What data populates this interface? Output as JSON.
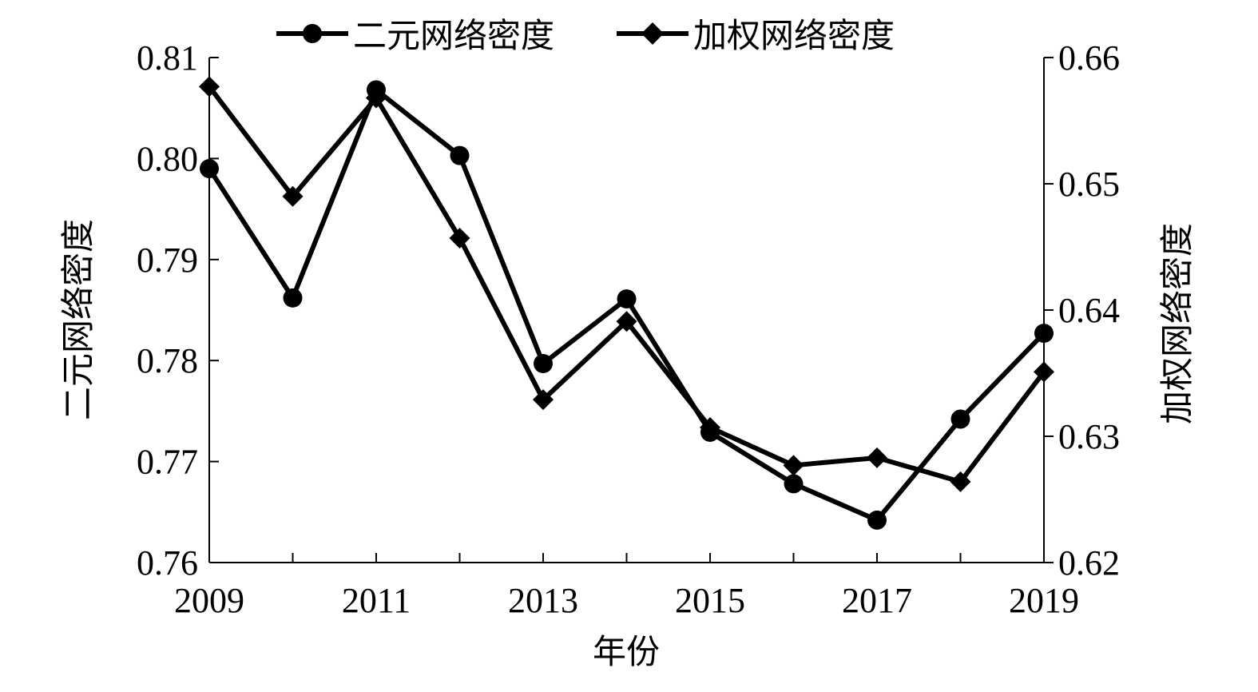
{
  "chart_data": {
    "type": "line",
    "x": [
      2009,
      2010,
      2011,
      2012,
      2013,
      2014,
      2015,
      2016,
      2017,
      2018,
      2019
    ],
    "x_tick_labels": [
      "2009",
      "2011",
      "2013",
      "2015",
      "2017",
      "2019"
    ],
    "x_tick_values": [
      2009,
      2011,
      2013,
      2015,
      2017,
      2019
    ],
    "xlabel": "年份",
    "xlim": [
      2009,
      2019
    ],
    "ylabel_left": "二元网络密度",
    "ylabel_right": "加权网络密度",
    "ylim_left": [
      0.76,
      0.81
    ],
    "ylim_right": [
      0.62,
      0.66
    ],
    "y_left_ticks": [
      "0.76",
      "0.77",
      "0.78",
      "0.79",
      "0.80",
      "0.81"
    ],
    "y_right_ticks": [
      "0.62",
      "0.63",
      "0.64",
      "0.65",
      "0.66"
    ],
    "grid": false,
    "legend_position": "top",
    "series": [
      {
        "name": "二元网络密度",
        "axis": "left",
        "marker": "circle",
        "color": "#000000",
        "values": [
          0.799,
          0.7862,
          0.8068,
          0.8003,
          0.7797,
          0.7861,
          0.7729,
          0.7678,
          0.7642,
          0.7742,
          0.7827
        ]
      },
      {
        "name": "加权网络密度",
        "axis": "right",
        "marker": "diamond",
        "color": "#000000",
        "values": [
          0.6577,
          0.649,
          0.6568,
          0.6457,
          0.6329,
          0.6391,
          0.6307,
          0.6277,
          0.6283,
          0.6264,
          0.6351
        ]
      }
    ]
  }
}
